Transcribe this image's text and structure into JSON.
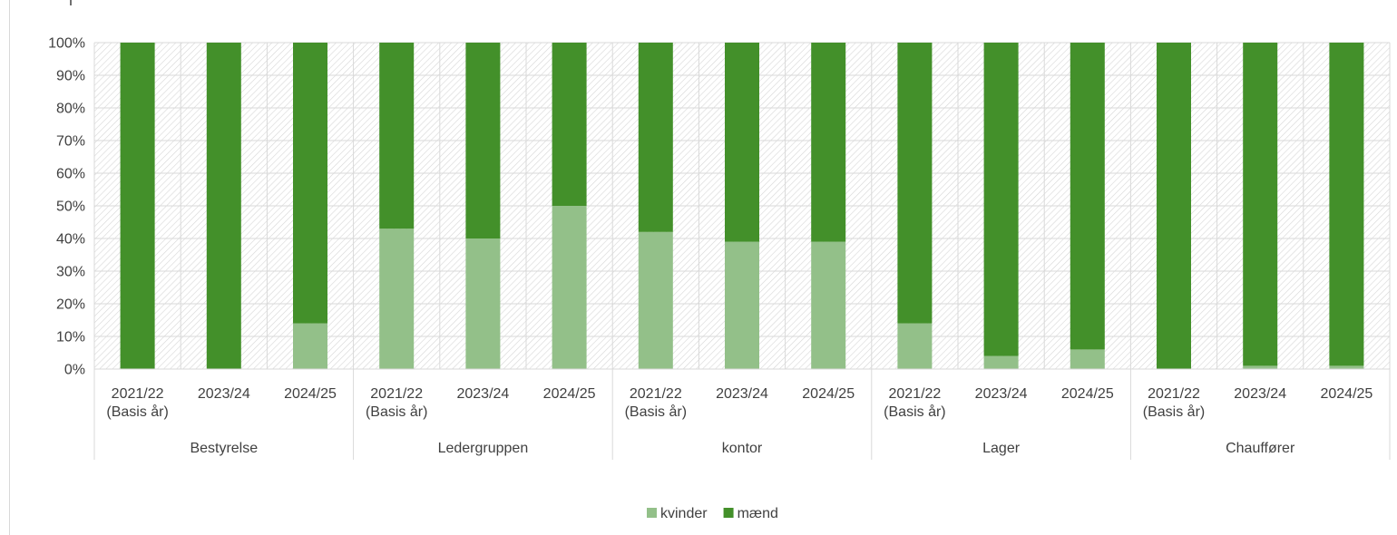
{
  "chart_data": {
    "type": "bar",
    "stacked": true,
    "title": "",
    "xlabel": "",
    "ylabel": "",
    "ylim": [
      0,
      100
    ],
    "y_ticks": [
      "0%",
      "10%",
      "20%",
      "30%",
      "40%",
      "50%",
      "60%",
      "70%",
      "80%",
      "90%",
      "100%"
    ],
    "grid": true,
    "legend_position": "bottom",
    "groups": [
      {
        "label": "Bestyrelse",
        "categories": [
          [
            "2021/22",
            "(Basis år)"
          ],
          [
            "2023/24"
          ],
          [
            "2024/25"
          ]
        ]
      },
      {
        "label": "Ledergruppen",
        "categories": [
          [
            "2021/22",
            "(Basis år)"
          ],
          [
            "2023/24"
          ],
          [
            "2024/25"
          ]
        ]
      },
      {
        "label": "kontor",
        "categories": [
          [
            "2021/22",
            "(Basis år)"
          ],
          [
            "2023/24"
          ],
          [
            "2024/25"
          ]
        ]
      },
      {
        "label": "Lager",
        "categories": [
          [
            "2021/22",
            "(Basis år)"
          ],
          [
            "2023/24"
          ],
          [
            "2024/25"
          ]
        ]
      },
      {
        "label": "Chauffører",
        "categories": [
          [
            "2021/22",
            "(Basis år)"
          ],
          [
            "2023/24"
          ],
          [
            "2024/25"
          ]
        ]
      }
    ],
    "series": [
      {
        "name": "kvinder",
        "color": "#93c089",
        "values": [
          0,
          0,
          14,
          43,
          40,
          50,
          42,
          39,
          39,
          14,
          4,
          6,
          0,
          1,
          1
        ]
      },
      {
        "name": "mænd",
        "color": "#43902a",
        "values": [
          100,
          100,
          86,
          57,
          60,
          50,
          58,
          61,
          61,
          86,
          96,
          94,
          100,
          99,
          99
        ]
      }
    ]
  }
}
